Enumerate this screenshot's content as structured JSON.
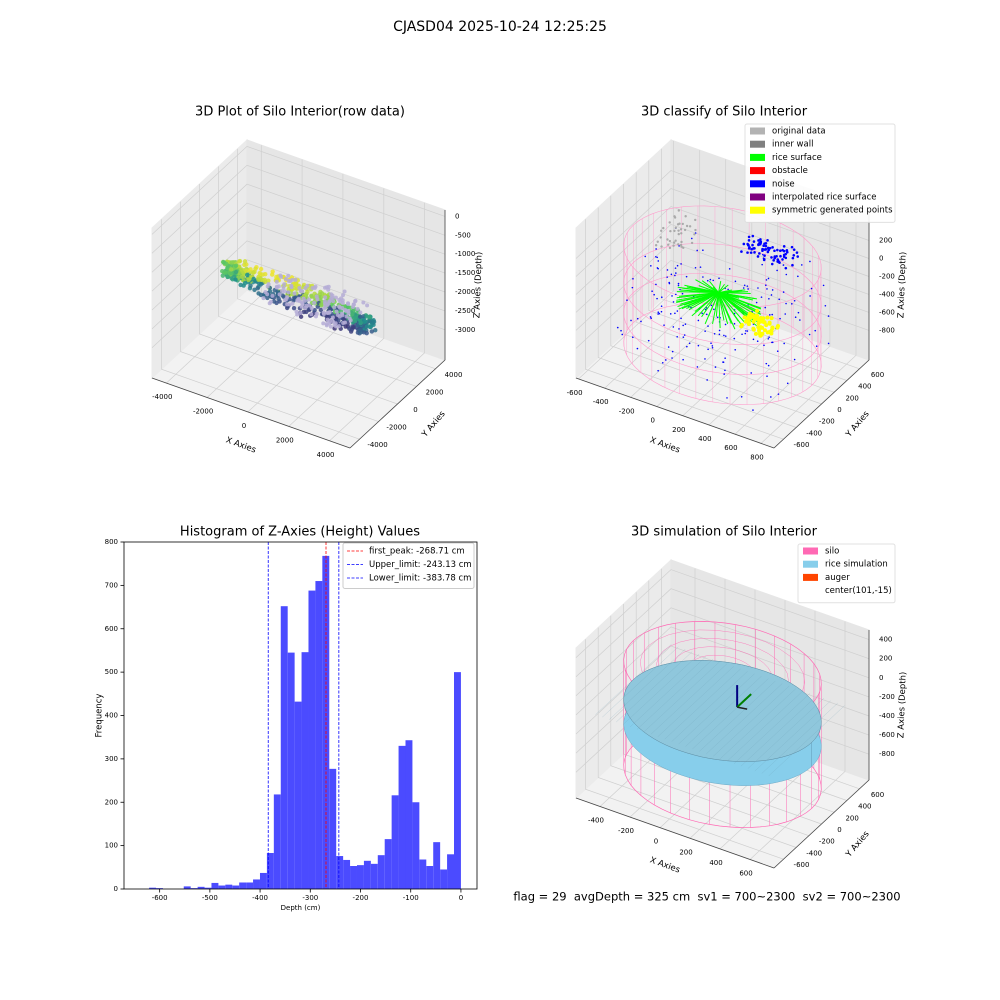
{
  "title": "CJASD04 2025-10-24 12:25:25",
  "footer": "flag = 29  avgDepth = 325 cm  sv1 = 700~2300  sv2 = 700~2300",
  "chart_data": [
    {
      "type": "scatter3d",
      "title": "3D Plot of Silo Interior(row data)",
      "xlabel": "X Axies",
      "ylabel": "Y Axies",
      "zlabel": "Z Axies (Depth)",
      "xlim": [
        -4700,
        5000
      ],
      "ylim": [
        -5000,
        5000
      ],
      "zlim": [
        -3800,
        170
      ],
      "xticks": [
        -4000,
        -2000,
        0,
        2000,
        4000
      ],
      "yticks": [
        -4000,
        -2000,
        0,
        2000,
        4000
      ],
      "zticks": [
        0,
        -500,
        -1000,
        -1500,
        -2000,
        -2500,
        -3000
      ]
    },
    {
      "type": "scatter3d",
      "title": "3D classify of Silo Interior",
      "xlabel": "X Axies",
      "ylabel": "Y Axies",
      "zlabel": "Z Axies (Depth)",
      "xlim": [
        -620,
        900
      ],
      "ylim": [
        -750,
        750
      ],
      "zlim": [
        -1130,
        540
      ],
      "xticks": [
        -600,
        -400,
        -200,
        0,
        200,
        400,
        600,
        800
      ],
      "yticks": [
        -600,
        -400,
        -200,
        0,
        200,
        400,
        600
      ],
      "zticks": [
        200,
        0,
        -200,
        -400,
        -600,
        -800
      ],
      "legend": [
        {
          "name": "original data",
          "color": "#b3b3b3"
        },
        {
          "name": "inner wall",
          "color": "#808080"
        },
        {
          "name": "rice surface",
          "color": "#00ff00"
        },
        {
          "name": "obstacle",
          "color": "#ff0000"
        },
        {
          "name": "noise",
          "color": "#0000ff"
        },
        {
          "name": "interpolated rice surface",
          "color": "#800080"
        },
        {
          "name": "symmetric generated points",
          "color": "#ffff00"
        }
      ]
    },
    {
      "type": "histogram",
      "title": "Histogram of Z-Axies (Height) Values",
      "xlabel": "Depth (cm)",
      "ylabel": "Frequency",
      "color": "#4b4bff",
      "bins": [
        -621,
        -607.2,
        -593.4,
        -579.6,
        -565.8,
        -552,
        -538.2,
        -524.4,
        -510.6,
        -496.8,
        -483,
        -469.2,
        -455.4,
        -441.6,
        -427.8,
        -414,
        -400.2,
        -386.4,
        -372.6,
        -358.8,
        -345,
        -331.2,
        -317.4,
        -303.6,
        -289.8,
        -276,
        -262.2,
        -248.4,
        -234.6,
        -220.8,
        -207,
        -193.2,
        -179.4,
        -165.6,
        -151.8,
        -138,
        -124.2,
        -110.4,
        -96.6,
        -82.8,
        -69,
        -55.2,
        -41.4,
        -27.6,
        -13.8,
        0
      ],
      "values": [
        3,
        2,
        0,
        0,
        0,
        6,
        2,
        5,
        3,
        14,
        8,
        10,
        8,
        15,
        15,
        22,
        37,
        83,
        218,
        652,
        545,
        432,
        546,
        688,
        710,
        768,
        277,
        76,
        67,
        53,
        55,
        65,
        58,
        78,
        115,
        216,
        330,
        343,
        200,
        68,
        53,
        108,
        45,
        80,
        500
      ],
      "lines": [
        {
          "label": "first_peak: -268.71 cm",
          "value": -268.71,
          "color": "#ff0000"
        },
        {
          "label": "Upper_limit: -243.13 cm",
          "value": -243.13,
          "color": "#0000ff"
        },
        {
          "label": "Lower_limit: -383.78 cm",
          "value": -383.78,
          "color": "#0000ff"
        }
      ],
      "xlim": [
        -671,
        32
      ],
      "ylim": [
        0,
        800
      ],
      "xticks": [
        -600,
        -500,
        -400,
        -300,
        -200,
        -100,
        0
      ],
      "yticks": [
        0,
        100,
        200,
        300,
        400,
        500,
        600,
        700,
        800
      ]
    },
    {
      "type": "surface3d",
      "title": "3D simulation of Silo Interior",
      "xlabel": "X Axies",
      "ylabel": "Y Axies",
      "zlabel": "Z Axies (Depth)",
      "xlim": [
        -560,
        760
      ],
      "ylim": [
        -750,
        750
      ],
      "zlim": [
        -1070,
        500
      ],
      "xticks": [
        -400,
        -200,
        0,
        200,
        400,
        600
      ],
      "yticks": [
        -600,
        -400,
        -200,
        0,
        200,
        400,
        600
      ],
      "zticks": [
        400,
        200,
        0,
        -200,
        -400,
        -600,
        -800
      ],
      "legend": [
        {
          "name": "silo",
          "color": "#ff69b4"
        },
        {
          "name": "rice simulation",
          "color": "#87ceeb"
        },
        {
          "name": "auger",
          "color": "#ff4500"
        },
        {
          "name": "center(101,-15)",
          "color": null
        }
      ]
    }
  ]
}
